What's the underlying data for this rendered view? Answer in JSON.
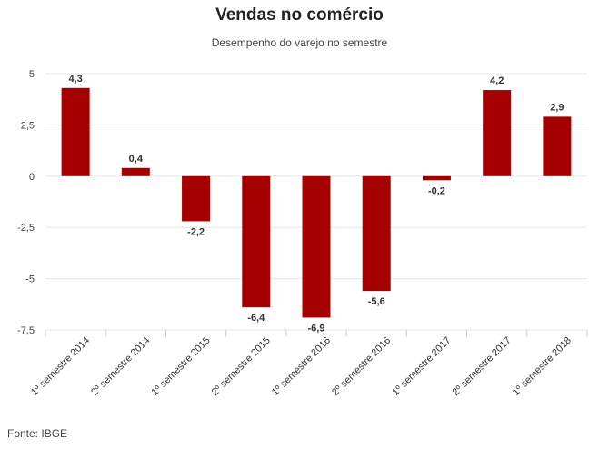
{
  "title": "Vendas no comércio",
  "subtitle": "Desempenho do varejo no semestre",
  "source": "Fonte: IBGE",
  "chart_data": {
    "type": "bar",
    "title": "Vendas no comércio",
    "subtitle": "Desempenho do varejo no semestre",
    "xlabel": "",
    "ylabel": "",
    "categories": [
      "1º semestre 2014",
      "2º semestre 2014",
      "1º semestre 2015",
      "2º semestre 2015",
      "1º semestre 2016",
      "2º semestre 2016",
      "1º semestre 2017",
      "2º semestre 2017",
      "1º semestre 2018"
    ],
    "values": [
      4.3,
      0.4,
      -2.2,
      -6.4,
      -6.9,
      -5.6,
      -0.2,
      4.2,
      2.9
    ],
    "value_labels": [
      "4,3",
      "0,4",
      "-2,2",
      "-6,4",
      "-6,9",
      "-5,6",
      "-0,2",
      "4,2",
      "2,9"
    ],
    "yticks": [
      5,
      2.5,
      0,
      -2.5,
      -5,
      -7.5
    ],
    "ytick_labels": [
      "5",
      "2,5",
      "0",
      "-2,5",
      "-5",
      "-7,5"
    ],
    "ylim": [
      -7.5,
      5
    ],
    "grid": true,
    "legend": "none",
    "bar_color": "#a50000"
  }
}
